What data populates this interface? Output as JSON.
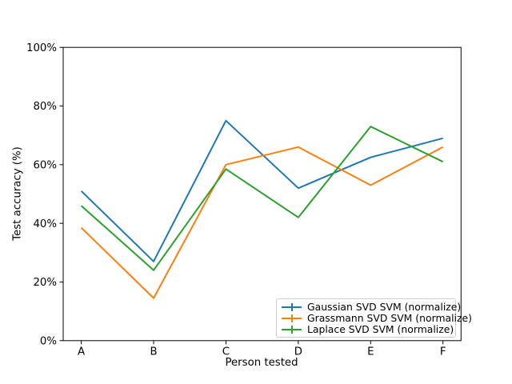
{
  "figure": {
    "background": "#ffffff"
  },
  "chart_data": {
    "type": "line",
    "style": "errorbar-lines",
    "title": "",
    "xlabel": "Person tested",
    "ylabel": "Test accuracy (%)",
    "categories": [
      "A",
      "B",
      "C",
      "D",
      "E",
      "F"
    ],
    "series": [
      {
        "name": "Gaussian SVD SVM (normalize)",
        "color": "#1f77b4",
        "values": [
          51,
          27,
          75,
          52,
          62.5,
          69
        ]
      },
      {
        "name": "Grassmann SVD SVM (normalize)",
        "color": "#ff7f0e",
        "values": [
          38.5,
          14.5,
          60,
          66,
          53,
          66
        ]
      },
      {
        "name": "Laplace SVD SVM (normalize)",
        "color": "#2ca02c",
        "values": [
          46,
          24,
          58.5,
          42,
          73,
          61
        ]
      }
    ],
    "ylim": [
      0,
      100
    ],
    "y_tick_values": [
      0,
      20,
      40,
      60,
      80,
      100
    ],
    "y_tick_labels": [
      "0%",
      "20%",
      "40%",
      "60%",
      "80%",
      "100%"
    ],
    "grid": false,
    "legend_position": "lower right",
    "axis_color": "#000000",
    "legend_edge_color": "#cccccc"
  }
}
